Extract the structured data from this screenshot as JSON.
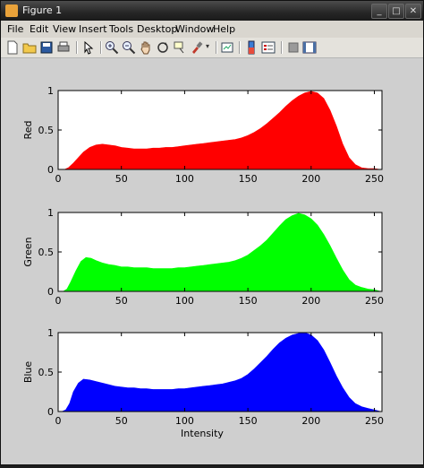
{
  "window": {
    "title": "Figure 1"
  },
  "menu": [
    "File",
    "Edit",
    "View",
    "Insert",
    "Tools",
    "Desktop",
    "Window",
    "Help"
  ],
  "toolbar_icons": [
    "new-figure-icon",
    "open-file-icon",
    "save-icon",
    "print-icon",
    "select-arrow-icon",
    "zoom-in-icon",
    "zoom-out-icon",
    "pan-hand-icon",
    "rotate-3d-icon",
    "data-cursor-icon",
    "brush-icon",
    "link-plot-icon",
    "colorbar-icon",
    "legend-icon",
    "hide-plot-tools-icon",
    "show-plot-tools-icon"
  ],
  "colors": {
    "red": "#ff0000",
    "green": "#00ff00",
    "blue": "#0000ff"
  },
  "chart_data": [
    {
      "type": "area",
      "ylabel": "Red",
      "xlabel": "",
      "xlim": [
        0,
        256
      ],
      "ylim": [
        0,
        1
      ],
      "xticks": [
        0,
        50,
        100,
        150,
        200,
        250
      ],
      "yticks": [
        0,
        0.5,
        1
      ],
      "color": "#ff0000",
      "x": [
        0,
        5,
        8,
        12,
        16,
        20,
        25,
        30,
        35,
        40,
        45,
        50,
        55,
        60,
        65,
        70,
        75,
        80,
        85,
        90,
        95,
        100,
        105,
        110,
        115,
        120,
        125,
        130,
        135,
        140,
        145,
        150,
        155,
        160,
        165,
        170,
        175,
        180,
        185,
        190,
        195,
        200,
        205,
        210,
        215,
        220,
        225,
        230,
        235,
        240,
        245,
        250,
        255
      ],
      "values": [
        0,
        0,
        0.02,
        0.08,
        0.15,
        0.22,
        0.28,
        0.31,
        0.32,
        0.31,
        0.3,
        0.28,
        0.27,
        0.26,
        0.26,
        0.26,
        0.27,
        0.27,
        0.28,
        0.28,
        0.29,
        0.3,
        0.31,
        0.32,
        0.33,
        0.34,
        0.35,
        0.36,
        0.37,
        0.38,
        0.4,
        0.43,
        0.47,
        0.52,
        0.58,
        0.65,
        0.72,
        0.8,
        0.87,
        0.93,
        0.97,
        0.99,
        0.97,
        0.9,
        0.75,
        0.55,
        0.32,
        0.15,
        0.06,
        0.02,
        0.01,
        0.01,
        0
      ]
    },
    {
      "type": "area",
      "ylabel": "Green",
      "xlabel": "",
      "xlim": [
        0,
        256
      ],
      "ylim": [
        0,
        1
      ],
      "xticks": [
        0,
        50,
        100,
        150,
        200,
        250
      ],
      "yticks": [
        0,
        0.5,
        1
      ],
      "color": "#00ff00",
      "x": [
        0,
        4,
        7,
        10,
        14,
        18,
        22,
        26,
        30,
        35,
        40,
        45,
        50,
        55,
        60,
        65,
        70,
        75,
        80,
        85,
        90,
        95,
        100,
        105,
        110,
        115,
        120,
        125,
        130,
        135,
        140,
        145,
        150,
        155,
        160,
        165,
        170,
        175,
        180,
        185,
        190,
        195,
        200,
        205,
        210,
        215,
        220,
        225,
        230,
        235,
        240,
        245,
        250,
        255
      ],
      "values": [
        0,
        0,
        0.03,
        0.12,
        0.26,
        0.38,
        0.43,
        0.42,
        0.39,
        0.36,
        0.34,
        0.33,
        0.31,
        0.31,
        0.3,
        0.3,
        0.3,
        0.29,
        0.29,
        0.29,
        0.29,
        0.3,
        0.3,
        0.31,
        0.32,
        0.33,
        0.34,
        0.35,
        0.36,
        0.37,
        0.39,
        0.42,
        0.46,
        0.52,
        0.58,
        0.65,
        0.74,
        0.83,
        0.91,
        0.96,
        0.99,
        0.97,
        0.92,
        0.84,
        0.72,
        0.58,
        0.42,
        0.27,
        0.15,
        0.08,
        0.05,
        0.03,
        0.02,
        0
      ]
    },
    {
      "type": "area",
      "ylabel": "Blue",
      "xlabel": "Intensity",
      "xlim": [
        0,
        256
      ],
      "ylim": [
        0,
        1
      ],
      "xticks": [
        0,
        50,
        100,
        150,
        200,
        250
      ],
      "yticks": [
        0,
        0.5,
        1
      ],
      "color": "#0000ff",
      "x": [
        0,
        3,
        6,
        9,
        12,
        16,
        20,
        25,
        30,
        35,
        40,
        45,
        50,
        55,
        60,
        65,
        70,
        75,
        80,
        85,
        90,
        95,
        100,
        105,
        110,
        115,
        120,
        125,
        130,
        135,
        140,
        145,
        150,
        155,
        160,
        165,
        170,
        175,
        180,
        185,
        190,
        195,
        200,
        205,
        210,
        215,
        220,
        225,
        230,
        235,
        240,
        245,
        250,
        255
      ],
      "values": [
        0,
        0,
        0.02,
        0.1,
        0.25,
        0.36,
        0.41,
        0.4,
        0.38,
        0.36,
        0.34,
        0.32,
        0.31,
        0.3,
        0.3,
        0.29,
        0.29,
        0.28,
        0.28,
        0.28,
        0.28,
        0.29,
        0.29,
        0.3,
        0.31,
        0.32,
        0.33,
        0.34,
        0.35,
        0.37,
        0.39,
        0.42,
        0.47,
        0.54,
        0.62,
        0.7,
        0.79,
        0.87,
        0.93,
        0.97,
        0.99,
        1.0,
        0.97,
        0.9,
        0.78,
        0.62,
        0.45,
        0.3,
        0.18,
        0.1,
        0.06,
        0.04,
        0.02,
        0
      ]
    }
  ]
}
